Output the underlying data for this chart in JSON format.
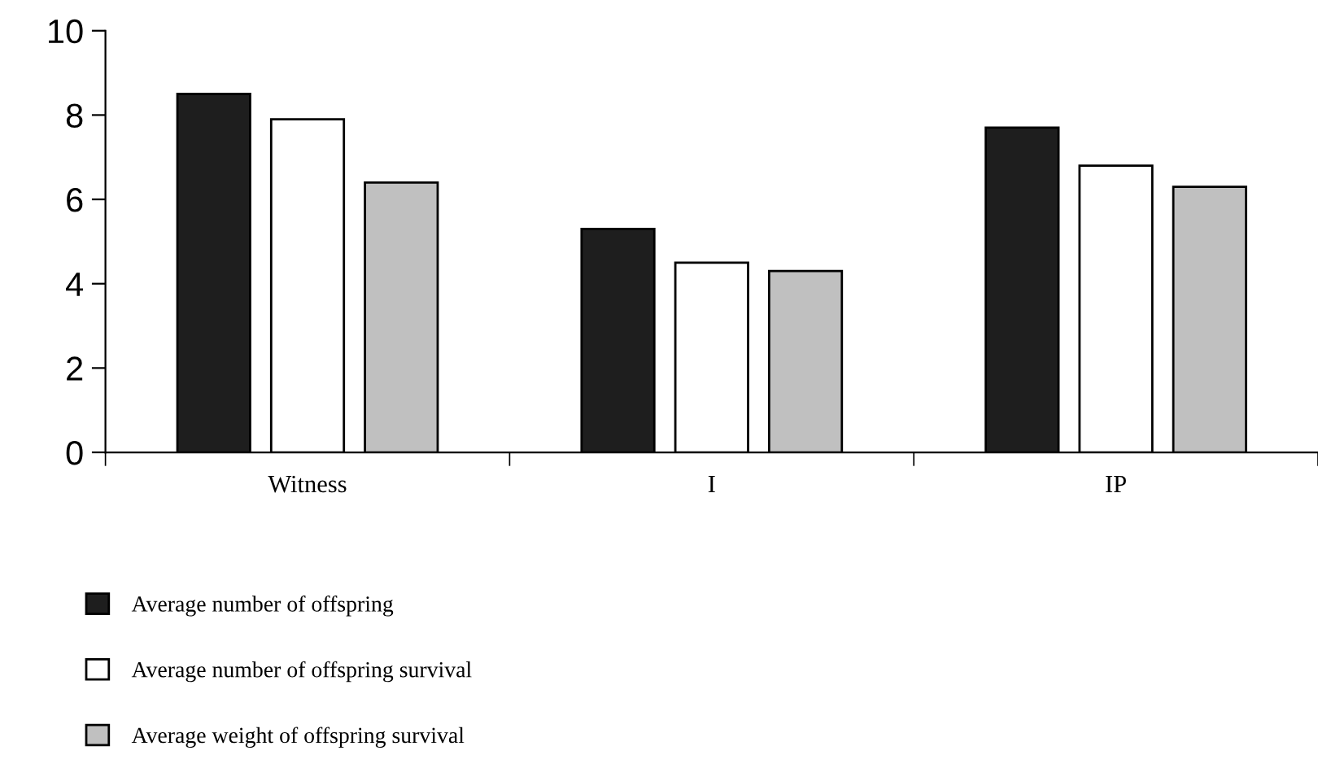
{
  "chart_data": {
    "type": "bar",
    "categories": [
      "Witness",
      "I",
      "IP"
    ],
    "series": [
      {
        "name": "Average number of offspring",
        "color": "#1e1e1e",
        "values": [
          8.5,
          5.3,
          7.7
        ]
      },
      {
        "name": "Average number of offspring survival",
        "color": "#ffffff",
        "values": [
          7.9,
          4.5,
          6.8
        ]
      },
      {
        "name": "Average weight of offspring survival",
        "color": "#c0c0c0",
        "values": [
          6.4,
          4.3,
          6.3
        ]
      }
    ],
    "ylim": [
      0,
      10
    ],
    "yticks": [
      0,
      2,
      4,
      6,
      8,
      10
    ],
    "grid": false,
    "legend": "bottom left"
  }
}
